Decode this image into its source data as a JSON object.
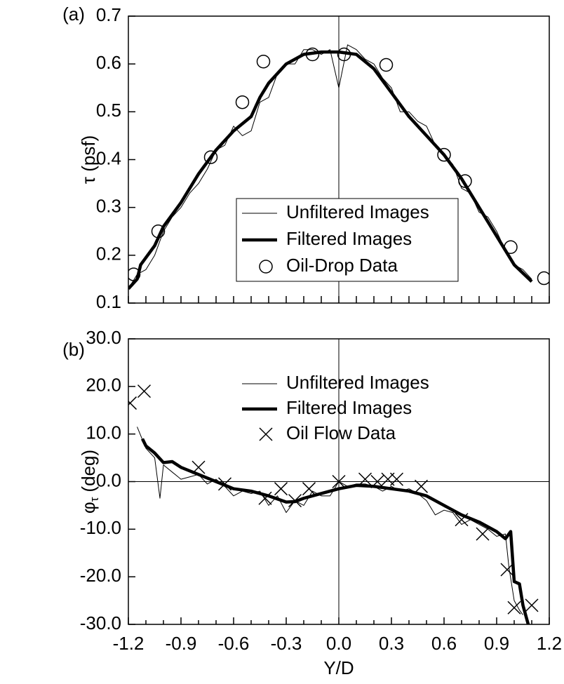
{
  "chart_data": [
    {
      "type": "line",
      "panel_label": "(a)",
      "ylabel": "τ (psf)",
      "xlim": [
        -1.2,
        1.2
      ],
      "ylim": [
        0.1,
        0.7
      ],
      "xticks": [
        -1.2,
        -1.1,
        -1.0,
        -0.9,
        -0.8,
        -0.7,
        -0.6,
        -0.5,
        -0.4,
        -0.3,
        -0.2,
        -0.1,
        0,
        0.1,
        0.2,
        0.3,
        0.4,
        0.5,
        0.6,
        0.7,
        0.8,
        0.9,
        1.0,
        1.1,
        1.2
      ],
      "yticks": [
        0.1,
        0.2,
        0.3,
        0.4,
        0.5,
        0.6,
        0.7
      ],
      "vline": 0,
      "legend": "lower center",
      "legend_frame": true,
      "series": [
        {
          "name": "Unfiltered Images",
          "color": "#000000",
          "linewidth": 1,
          "x": [
            -1.2,
            -1.15,
            -1.1,
            -1.05,
            -1.0,
            -0.95,
            -0.9,
            -0.85,
            -0.8,
            -0.75,
            -0.7,
            -0.65,
            -0.6,
            -0.55,
            -0.5,
            -0.45,
            -0.4,
            -0.35,
            -0.3,
            -0.25,
            -0.2,
            -0.15,
            -0.1,
            -0.05,
            0.0,
            0.05,
            0.1,
            0.15,
            0.2,
            0.25,
            0.3,
            0.35,
            0.4,
            0.45,
            0.5,
            0.55,
            0.6,
            0.65,
            0.7,
            0.75,
            0.8,
            0.85,
            0.9,
            0.95,
            1.0,
            1.05,
            1.1
          ],
          "values": [
            0.13,
            0.16,
            0.17,
            0.2,
            0.25,
            0.28,
            0.3,
            0.33,
            0.35,
            0.38,
            0.42,
            0.43,
            0.47,
            0.45,
            0.46,
            0.52,
            0.53,
            0.58,
            0.6,
            0.6,
            0.63,
            0.63,
            0.62,
            0.63,
            0.55,
            0.64,
            0.63,
            0.61,
            0.6,
            0.57,
            0.55,
            0.5,
            0.5,
            0.48,
            0.47,
            0.43,
            0.41,
            0.39,
            0.34,
            0.33,
            0.29,
            0.28,
            0.25,
            0.21,
            0.18,
            0.17,
            0.15
          ]
        },
        {
          "name": "Filtered Images",
          "color": "#000000",
          "linewidth": 4.5,
          "x": [
            -1.2,
            -1.15,
            -1.13,
            -1.05,
            -1.0,
            -0.9,
            -0.8,
            -0.7,
            -0.6,
            -0.5,
            -0.45,
            -0.4,
            -0.3,
            -0.2,
            -0.1,
            0.0,
            0.1,
            0.2,
            0.3,
            0.4,
            0.5,
            0.6,
            0.7,
            0.8,
            0.9,
            1.0,
            1.1
          ],
          "values": [
            0.13,
            0.15,
            0.18,
            0.22,
            0.26,
            0.31,
            0.37,
            0.42,
            0.46,
            0.49,
            0.53,
            0.56,
            0.6,
            0.62,
            0.625,
            0.625,
            0.62,
            0.59,
            0.54,
            0.49,
            0.45,
            0.41,
            0.36,
            0.3,
            0.24,
            0.18,
            0.145
          ]
        },
        {
          "name": "Oil-Drop Data",
          "color": "#000000",
          "marker": "circle",
          "x": [
            -1.17,
            -1.03,
            -0.73,
            -0.55,
            -0.43,
            -0.15,
            0.03,
            0.27,
            0.6,
            0.72,
            0.98,
            1.17
          ],
          "values": [
            0.16,
            0.25,
            0.405,
            0.52,
            0.605,
            0.62,
            0.62,
            0.598,
            0.41,
            0.355,
            0.217,
            0.152
          ]
        }
      ]
    },
    {
      "type": "line",
      "panel_label": "(b)",
      "ylabel": "φ",
      "ylabel_sub": "τ",
      "ylabel_unit": "(deg)",
      "xlabel": "Y/D",
      "xlim": [
        -1.2,
        1.2
      ],
      "ylim": [
        -30,
        30
      ],
      "xticks": [
        {
          "value": -1.2,
          "label": "-1.2"
        },
        {
          "value": -0.9,
          "label": "-0.9"
        },
        {
          "value": -0.6,
          "label": "-0.6"
        },
        {
          "value": -0.3,
          "label": "-0.3"
        },
        {
          "value": 0,
          "label": "0.0"
        },
        0.3,
        0.6,
        0.9,
        1.2
      ],
      "xminorticks": [
        -1.1,
        -1.0,
        -0.8,
        -0.7,
        -0.5,
        -0.4,
        -0.2,
        -0.1,
        0.1,
        0.2,
        0.4,
        0.5,
        0.7,
        0.8,
        1.0,
        1.1
      ],
      "yticks": [
        {
          "value": -30,
          "label": "-30.0"
        },
        {
          "value": -20,
          "label": "-20.0"
        },
        {
          "value": -10,
          "label": "-10.0"
        },
        {
          "value": 0,
          "label": "0.0"
        },
        {
          "value": 10,
          "label": "10.0"
        },
        {
          "value": 20,
          "label": "20.0"
        },
        {
          "value": 30,
          "label": "30.0"
        }
      ],
      "vline": 0,
      "hline": 0,
      "legend": "upper center",
      "legend_frame": false,
      "series": [
        {
          "name": "Unfiltered Images",
          "color": "#000000",
          "linewidth": 1,
          "x": [
            -1.15,
            -1.1,
            -1.05,
            -1.02,
            -1.0,
            -0.95,
            -0.9,
            -0.85,
            -0.8,
            -0.75,
            -0.7,
            -0.65,
            -0.6,
            -0.55,
            -0.5,
            -0.45,
            -0.4,
            -0.35,
            -0.3,
            -0.25,
            -0.2,
            -0.15,
            -0.1,
            -0.05,
            0,
            0.05,
            0.1,
            0.15,
            0.2,
            0.25,
            0.3,
            0.35,
            0.4,
            0.45,
            0.5,
            0.55,
            0.6,
            0.65,
            0.7,
            0.75,
            0.8,
            0.85,
            0.9,
            0.95,
            0.97,
            1.0,
            1.03,
            1.05
          ],
          "values": [
            11.5,
            7,
            5,
            -3.5,
            3.5,
            2,
            0.5,
            1,
            1.5,
            -0.5,
            0.5,
            -1,
            -3,
            -2,
            -2.5,
            -2,
            -5,
            -3,
            -6.5,
            -4,
            -5,
            -2,
            -3,
            -3,
            0,
            -1,
            -0.5,
            -0.5,
            -1,
            -2,
            -1,
            -2,
            -1.5,
            -2.5,
            -4,
            -7,
            -6,
            -6.5,
            -9,
            -8,
            -9,
            -10,
            -11.5,
            -11,
            -18,
            -25,
            -27,
            -28
          ]
        },
        {
          "name": "Filtered Images",
          "color": "#000000",
          "linewidth": 4.5,
          "x": [
            -1.12,
            -1.1,
            -1.05,
            -1.0,
            -0.95,
            -0.9,
            -0.8,
            -0.7,
            -0.6,
            -0.5,
            -0.4,
            -0.3,
            -0.25,
            -0.2,
            -0.1,
            0,
            0.1,
            0.2,
            0.3,
            0.4,
            0.5,
            0.6,
            0.7,
            0.8,
            0.9,
            0.95,
            0.98,
            1.0,
            1.03,
            1.05,
            1.08
          ],
          "values": [
            9,
            7.5,
            6,
            4,
            4.2,
            3,
            1.5,
            0,
            -1.5,
            -2,
            -3,
            -4.3,
            -4.2,
            -3.5,
            -2.5,
            -1.5,
            -0.8,
            -1.0,
            -1.5,
            -2.0,
            -3.0,
            -5.0,
            -7.0,
            -8.5,
            -10.5,
            -12,
            -10.5,
            -21,
            -21.5,
            -26,
            -30
          ]
        },
        {
          "name": "Oil Flow Data",
          "color": "#000000",
          "marker": "x",
          "x": [
            -1.19,
            -1.11,
            -0.8,
            -0.65,
            -0.42,
            -0.33,
            -0.25,
            -0.17,
            0.0,
            0.15,
            0.22,
            0.28,
            0.33,
            0.47,
            0.7,
            0.82,
            0.96,
            1.0,
            1.1
          ],
          "values": [
            16.5,
            19,
            3,
            -0.5,
            -3.5,
            -1.5,
            -4,
            -1.5,
            0,
            0.5,
            0,
            0.5,
            0.5,
            -1,
            -8,
            -11,
            -18.5,
            -26.5,
            -26
          ]
        }
      ]
    }
  ]
}
